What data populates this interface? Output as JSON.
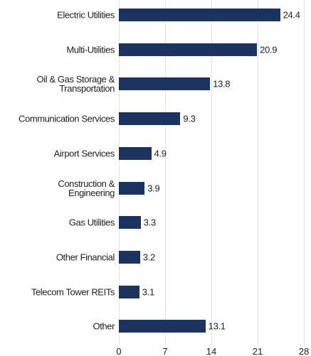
{
  "chart_data": {
    "type": "bar",
    "orientation": "horizontal",
    "categories": [
      "Electric Utilities",
      "Multi-Utilities",
      "Oil & Gas Storage &\nTransportation",
      "Communication Services",
      "Airport Services",
      "Construction &\nEngineering",
      "Gas Utilities",
      "Other Financial",
      "Telecom Tower REITs",
      "Other"
    ],
    "values": [
      24.4,
      20.9,
      13.8,
      9.3,
      4.9,
      3.9,
      3.3,
      3.2,
      3.1,
      13.1
    ],
    "color": "#1c335f",
    "xlim": [
      0,
      28
    ],
    "xticks": [
      0,
      7,
      14,
      21,
      28
    ],
    "grid": true
  }
}
